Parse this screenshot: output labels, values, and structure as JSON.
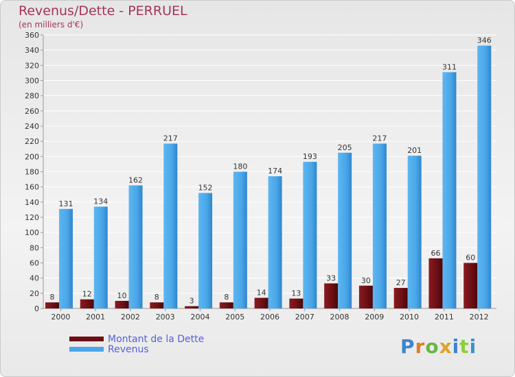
{
  "header": {
    "title": "Revenus/Dette - PERRUEL",
    "subtitle": "(en milliers d'€)"
  },
  "legend": {
    "items": [
      {
        "label": "Montant de la Dette",
        "color": "#6b0f14"
      },
      {
        "label": "Revenus",
        "color": "#4aa6e8"
      }
    ]
  },
  "logo": {
    "text": "Proxiti"
  },
  "chart_data": {
    "type": "bar",
    "categories": [
      "2000",
      "2001",
      "2002",
      "2003",
      "2004",
      "2005",
      "2006",
      "2007",
      "2008",
      "2009",
      "2010",
      "2011",
      "2012"
    ],
    "series": [
      {
        "name": "Montant de la Dette",
        "color": "#6b0f14",
        "values": [
          8,
          12,
          10,
          8,
          3,
          8,
          14,
          13,
          33,
          30,
          27,
          66,
          60
        ]
      },
      {
        "name": "Revenus",
        "color": "#4aa6e8",
        "values": [
          131,
          134,
          162,
          217,
          152,
          180,
          174,
          193,
          205,
          217,
          201,
          311,
          346
        ]
      }
    ],
    "ylim": [
      0,
      360
    ],
    "yticks": [
      0,
      20,
      40,
      60,
      80,
      100,
      120,
      140,
      160,
      180,
      200,
      220,
      240,
      260,
      280,
      300,
      320,
      340,
      360
    ],
    "grid": true,
    "legend_position": "bottom-left"
  }
}
